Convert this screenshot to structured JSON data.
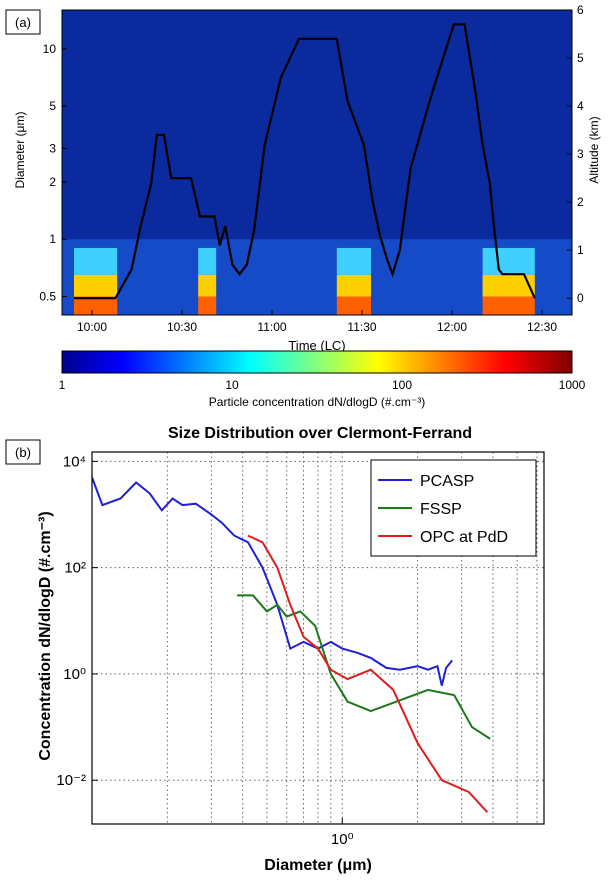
{
  "panel_a": {
    "label": "(a)",
    "ylabel_left": "Diameter (μm)",
    "ylabel_right": "Altitude (km)",
    "xlabel": "Time (LC)",
    "left_ticks": [
      "0.5",
      "1",
      "2",
      "3",
      "5",
      "10"
    ],
    "right_ticks": [
      "0",
      "1",
      "2",
      "3",
      "4",
      "5",
      "6"
    ],
    "time_ticks": [
      "10:00",
      "10:30",
      "11:00",
      "11:30",
      "12:00",
      "12:30"
    ],
    "colorbar_label": "Particle concentration dN/dlogD (#.cm⁻³)",
    "colorbar_ticks": [
      "1",
      "10",
      "100",
      "1000"
    ]
  },
  "panel_b": {
    "label": "(b)",
    "title": "Size Distribution over Clermont-Ferrand",
    "ylabel": "Concentration dN/dlogD (#.cm⁻³)",
    "xlabel": "Diameter (μm)",
    "y_ticks": [
      "10⁻²",
      "10⁰",
      "10²",
      "10⁴"
    ],
    "x_tick": "10⁰"
  },
  "chart_data": [
    {
      "type": "heatmap",
      "x_axis": "time (LC)",
      "x_range": [
        "10:00",
        "12:30"
      ],
      "y_left": {
        "label": "Diameter (μm)",
        "scale": "log",
        "range": [
          0.4,
          16
        ]
      },
      "y_right": {
        "label": "Altitude (km)",
        "range": [
          -0.35,
          6
        ]
      },
      "colorscale": {
        "type": "log",
        "range": [
          1,
          1000
        ],
        "colors": [
          "#00008f",
          "#0000ff",
          "#00ffff",
          "#ffff00",
          "#ff0000",
          "#800000"
        ]
      },
      "altitude_profile": {
        "time_h": [
          9.9,
          10.13,
          10.22,
          10.27,
          10.33,
          10.36,
          10.4,
          10.44,
          10.55,
          10.6,
          10.68,
          10.71,
          10.74,
          10.78,
          10.82,
          10.86,
          10.9,
          10.96,
          11.05,
          11.15,
          11.36,
          11.42,
          11.51,
          11.56,
          11.6,
          11.64,
          11.67,
          11.71,
          11.77,
          11.86,
          11.9,
          12.01,
          12.07,
          12.13,
          12.17,
          12.21,
          12.23,
          12.26,
          12.28,
          12.3,
          12.36,
          12.4,
          12.46
        ],
        "alt_km": [
          0,
          0,
          0.6,
          1.5,
          2.4,
          3.4,
          3.4,
          2.5,
          2.5,
          1.7,
          1.7,
          1.1,
          1.5,
          0.7,
          0.5,
          0.7,
          1.4,
          3.2,
          4.6,
          5.4,
          5.4,
          4.1,
          3.2,
          2.0,
          1.3,
          0.8,
          0.5,
          1.0,
          2.7,
          3.9,
          4.4,
          5.7,
          5.7,
          4.3,
          3.2,
          2.4,
          1.6,
          0.6,
          0.5,
          0.5,
          0.5,
          0.5,
          0
        ]
      },
      "plumes_time_h": [
        [
          9.9,
          10.14
        ],
        [
          10.59,
          10.69
        ],
        [
          11.36,
          11.55
        ],
        [
          12.17,
          12.46
        ]
      ]
    },
    {
      "type": "line",
      "title": "Size Distribution over Clermont-Ferrand",
      "xlabel": "Diameter (μm)",
      "ylabel": "Concentration dN/dlogD (#.cm⁻³)",
      "x_scale": "log",
      "y_scale": "log",
      "xlim": [
        0.1,
        6.4
      ],
      "ylim": [
        0.0015,
        15000
      ],
      "grid": true,
      "legend_position": "top-right",
      "series": [
        {
          "name": "PCASP",
          "color": "#1f1fd4",
          "x": [
            0.1,
            0.11,
            0.13,
            0.15,
            0.17,
            0.19,
            0.21,
            0.23,
            0.26,
            0.3,
            0.33,
            0.37,
            0.42,
            0.48,
            0.55,
            0.62,
            0.7,
            0.8,
            0.9,
            1.0,
            1.15,
            1.3,
            1.5,
            1.7,
            2.0,
            2.2,
            2.4,
            2.5,
            2.6,
            2.75
          ],
          "y": [
            5000,
            1500,
            2000,
            4000,
            2500,
            1200,
            2000,
            1500,
            1600,
            1000,
            700,
            400,
            300,
            100,
            20,
            3,
            4,
            3,
            4,
            3,
            2.5,
            2,
            1.3,
            1.2,
            1.4,
            1.2,
            1.4,
            0.6,
            1.3,
            1.8
          ]
        },
        {
          "name": "FSSP",
          "color": "#1a7a1a",
          "x": [
            0.38,
            0.44,
            0.5,
            0.55,
            0.6,
            0.68,
            0.78,
            0.9,
            1.05,
            1.3,
            2.2,
            2.8,
            3.3,
            3.9
          ],
          "y": [
            30,
            30,
            15,
            20,
            12,
            15,
            8,
            1,
            0.3,
            0.2,
            0.5,
            0.4,
            0.1,
            0.06
          ]
        },
        {
          "name": "OPC at PdD",
          "color": "#dd1f1f",
          "x": [
            0.42,
            0.48,
            0.55,
            0.62,
            0.7,
            0.8,
            0.9,
            1.05,
            1.3,
            1.6,
            2.0,
            2.5,
            3.2,
            3.8
          ],
          "y": [
            400,
            300,
            100,
            20,
            5,
            3,
            1.2,
            0.8,
            1.2,
            0.5,
            0.05,
            0.01,
            0.006,
            0.0025
          ]
        }
      ]
    }
  ]
}
